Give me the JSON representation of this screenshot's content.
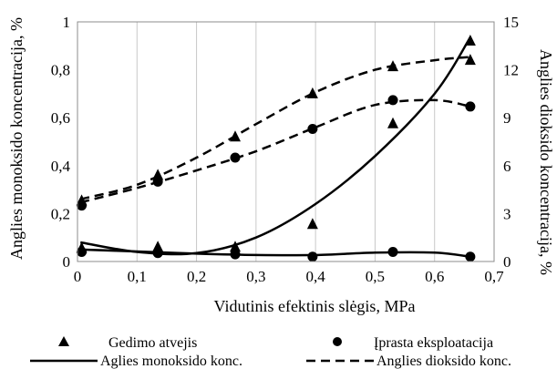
{
  "chart_data": {
    "type": "scatter",
    "xlabel": "Vidutinis efektinis slėgis, MPa",
    "ylabel_left": "Anglies monoksido koncentracija, %",
    "ylabel_right": "Anglies dioksido koncentracija, %",
    "xlim": [
      0,
      0.7
    ],
    "ylim_left": [
      0,
      1
    ],
    "ylim_right": [
      0,
      15
    ],
    "x_ticks": [
      0,
      0.1,
      0.2,
      0.3,
      0.4,
      0.5,
      0.6,
      0.7
    ],
    "x_tick_labels": [
      "0",
      "0,1",
      "0,2",
      "0,3",
      "0,4",
      "0,5",
      "0,6",
      "0,7"
    ],
    "y_left_ticks": [
      0,
      0.2,
      0.4,
      0.6,
      0.8,
      1
    ],
    "y_left_tick_labels": [
      "0",
      "0,2",
      "0,4",
      "0,6",
      "0,8",
      "1"
    ],
    "y_right_ticks": [
      0,
      3,
      6,
      9,
      12,
      15
    ],
    "y_right_tick_labels": [
      "0",
      "3",
      "6",
      "9",
      "12",
      "15"
    ],
    "grid": "vertical",
    "legend_position": "bottom",
    "legend": {
      "triangle": "Gedimo atvejis",
      "circle": "Įprasta eksploatacija",
      "solid": "Aglies monoksido konc.",
      "dashed": "Anglies dioksido konc."
    },
    "series": [
      {
        "name": "Gedimo atvejis",
        "group": "co",
        "axis": "left",
        "marker": "triangle",
        "x": [
          0.007,
          0.135,
          0.265,
          0.395,
          0.53,
          0.66
        ],
        "y": [
          0.055,
          0.06,
          0.06,
          0.155,
          0.575,
          0.92
        ],
        "fit": {
          "x": [
            0.005,
            0.1,
            0.2,
            0.3,
            0.4,
            0.5,
            0.6,
            0.66
          ],
          "y": [
            0.08,
            0.04,
            0.035,
            0.1,
            0.24,
            0.44,
            0.7,
            0.935
          ]
        }
      },
      {
        "name": "Įprasta eksploatacija",
        "group": "co",
        "axis": "left",
        "marker": "circle",
        "x": [
          0.007,
          0.135,
          0.265,
          0.395,
          0.53,
          0.66
        ],
        "y": [
          0.04,
          0.035,
          0.03,
          0.02,
          0.04,
          0.02
        ],
        "fit": {
          "x": [
            0.005,
            0.1,
            0.2,
            0.3,
            0.4,
            0.5,
            0.6,
            0.66
          ],
          "y": [
            0.05,
            0.042,
            0.033,
            0.027,
            0.027,
            0.037,
            0.037,
            0.02
          ]
        }
      },
      {
        "name": "Gedimo atvejis",
        "group": "co2",
        "axis": "right",
        "marker": "triangle",
        "x": [
          0.007,
          0.135,
          0.265,
          0.395,
          0.53,
          0.66
        ],
        "y": [
          3.8,
          5.4,
          7.8,
          10.5,
          12.2,
          12.6
        ],
        "fit": {
          "x": [
            0.005,
            0.1,
            0.2,
            0.3,
            0.4,
            0.5,
            0.6,
            0.66
          ],
          "y": [
            3.9,
            4.8,
            6.5,
            8.6,
            10.6,
            12.0,
            12.6,
            12.8
          ]
        }
      },
      {
        "name": "Įprasta eksploatacija",
        "group": "co2",
        "axis": "right",
        "marker": "circle",
        "x": [
          0.007,
          0.135,
          0.265,
          0.395,
          0.53,
          0.66
        ],
        "y": [
          3.5,
          5.0,
          6.5,
          8.3,
          10.1,
          9.7
        ],
        "fit": {
          "x": [
            0.005,
            0.1,
            0.2,
            0.3,
            0.4,
            0.5,
            0.6,
            0.66
          ],
          "y": [
            3.7,
            4.6,
            5.7,
            6.9,
            8.4,
            9.8,
            10.1,
            9.7
          ]
        }
      }
    ]
  }
}
